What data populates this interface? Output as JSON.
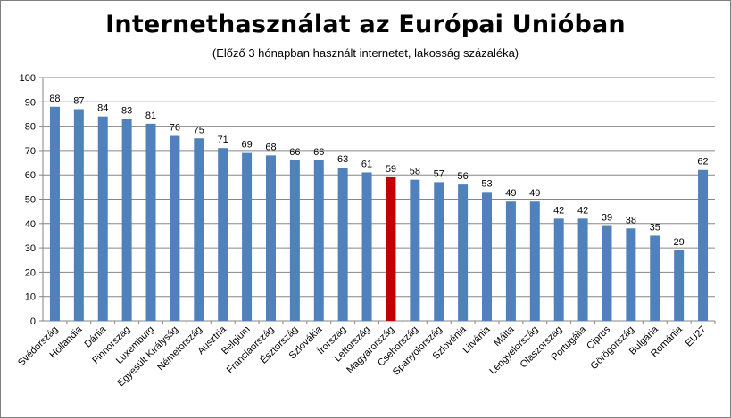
{
  "chart_data": {
    "type": "bar",
    "title": "Internethasználat az Európai Unióban",
    "subtitle": "(Előző 3 hónapban  használt internetet,  lakosság százaléka)",
    "xlabel": "",
    "ylabel": "",
    "ylim": [
      0,
      100
    ],
    "yticks": [
      0,
      10,
      20,
      30,
      40,
      50,
      60,
      70,
      80,
      90,
      100
    ],
    "grid": true,
    "categories": [
      "Svédország",
      "Hollandia",
      "Dánia",
      "Finnország",
      "Luxemburg",
      "Egyesült Királyság",
      "Németország",
      "Ausztria",
      "Belgium",
      "Franciaország",
      "Észtország",
      "Szlovákia",
      "Írország",
      "Lettország",
      "Magyarország",
      "Csehország",
      "Spanyolország",
      "Szlovénia",
      "Litvánia",
      "Málta",
      "Lengyelország",
      "Olaszország",
      "Portugália",
      "Ciprus",
      "Görögország",
      "Bulgária",
      "Románia",
      "EU27"
    ],
    "values": [
      88,
      87,
      84,
      83,
      81,
      76,
      75,
      71,
      69,
      68,
      66,
      66,
      63,
      61,
      59,
      58,
      57,
      56,
      53,
      49,
      49,
      42,
      42,
      39,
      38,
      35,
      29,
      62
    ],
    "highlight_index": 14,
    "colors": {
      "bar": "#4f81bd",
      "highlight": "#c00000",
      "grid": "#868686",
      "axis": "#868686"
    }
  }
}
